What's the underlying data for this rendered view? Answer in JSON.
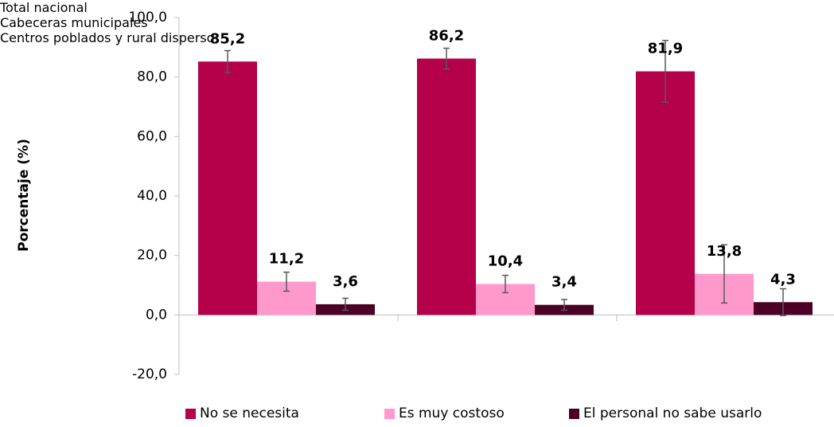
{
  "chart_data": {
    "type": "bar",
    "y_label": "Porcentaje (%)",
    "categories": [
      "Total nacional",
      "Cabeceras municipales",
      "Centros poblados y rural disperso"
    ],
    "series": [
      {
        "name": "No se necesita",
        "color": "#b5004a",
        "values": [
          85.2,
          86.2,
          81.9
        ],
        "value_labels": [
          "85,2",
          "86,2",
          "81,9"
        ],
        "errors": [
          3.7,
          3.5,
          10.4
        ]
      },
      {
        "name": "Es muy costoso",
        "color": "#ff99cc",
        "values": [
          11.2,
          10.4,
          13.8
        ],
        "value_labels": [
          "11,2",
          "10,4",
          "13,8"
        ],
        "errors": [
          3.2,
          2.9,
          9.8
        ]
      },
      {
        "name": "El personal no sabe usarlo",
        "color": "#4d0026",
        "values": [
          3.6,
          3.4,
          4.3
        ],
        "value_labels": [
          "3,6",
          "3,4",
          "4,3"
        ],
        "errors": [
          2.0,
          1.8,
          4.5
        ]
      }
    ],
    "ylim": [
      -20,
      100
    ],
    "yticks": [
      {
        "value": -20,
        "label": "-20,0"
      },
      {
        "value": 0,
        "label": "0,0"
      },
      {
        "value": 20,
        "label": "20,0"
      },
      {
        "value": 40,
        "label": "40,0"
      },
      {
        "value": 60,
        "label": "60,0"
      },
      {
        "value": 80,
        "label": "80,0"
      },
      {
        "value": 100,
        "label": "100,0"
      }
    ],
    "grid": false,
    "legend": "bottom"
  }
}
